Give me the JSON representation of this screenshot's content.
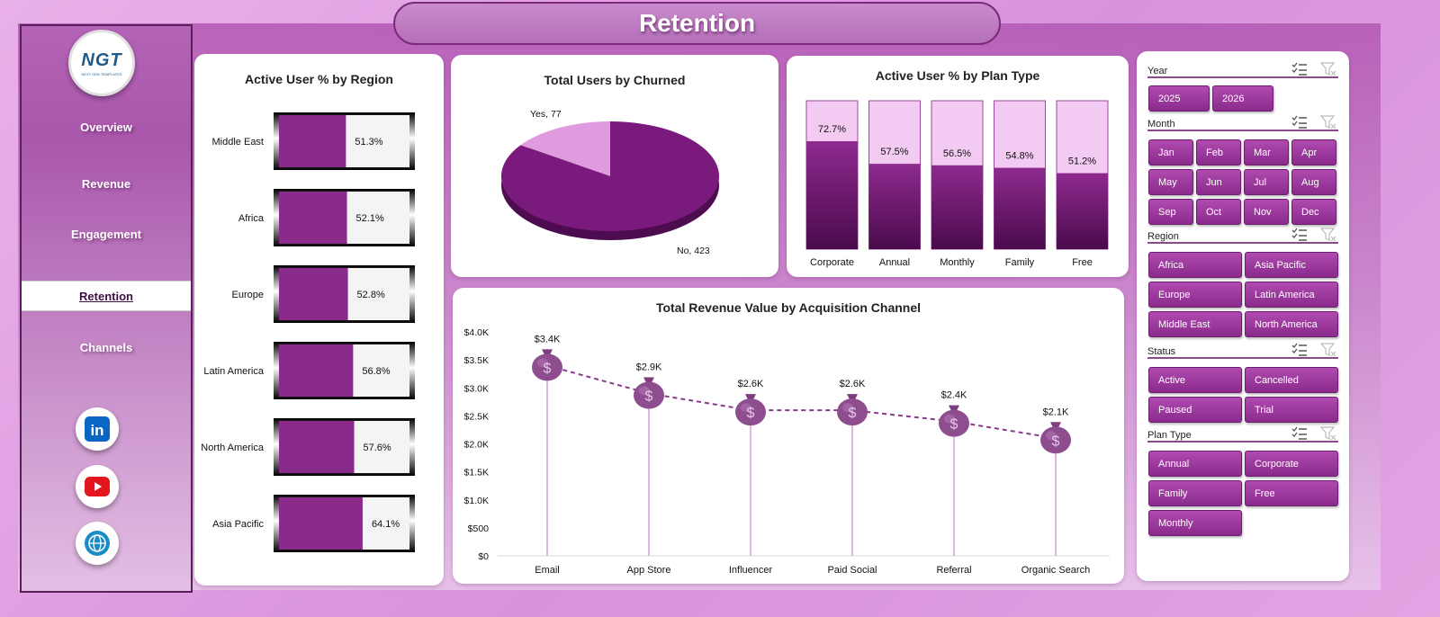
{
  "page_title": "Retention",
  "logo": {
    "text": "NGT",
    "subtext": "NEXT GEN TEMPLATES"
  },
  "nav": {
    "items": [
      {
        "label": "Overview",
        "active": false
      },
      {
        "label": "Revenue",
        "active": false
      },
      {
        "label": "Engagement",
        "active": false
      },
      {
        "label": "Retention",
        "active": true
      },
      {
        "label": "Channels",
        "active": false
      }
    ]
  },
  "social": [
    {
      "icon": "linkedin-icon",
      "label": "in"
    },
    {
      "icon": "youtube-icon",
      "label": ""
    },
    {
      "icon": "globe-icon",
      "label": ""
    }
  ],
  "colors": {
    "accent": "#8a2b8c",
    "dark": "#5e0f60",
    "light": "#f2caf2",
    "line": "#8a3a8c"
  },
  "chart_data": [
    {
      "id": "region",
      "type": "bar",
      "orientation": "horizontal",
      "title": "Active User % by Region",
      "categories": [
        "Middle East",
        "Africa",
        "Europe",
        "Latin America",
        "North America",
        "Asia Pacific"
      ],
      "values": [
        51.3,
        52.1,
        52.8,
        56.8,
        57.6,
        64.1
      ],
      "value_labels": [
        "51.3%",
        "52.1%",
        "52.8%",
        "56.8%",
        "57.6%",
        "64.1%"
      ],
      "xlim": [
        0,
        100
      ],
      "grid": false
    },
    {
      "id": "churn",
      "type": "pie",
      "title": "Total Users by Churned",
      "slices": [
        {
          "label": "Yes",
          "value": 77,
          "text": "Yes, 77"
        },
        {
          "label": "No",
          "value": 423,
          "text": "No, 423"
        }
      ]
    },
    {
      "id": "plan",
      "type": "bar",
      "orientation": "vertical",
      "title": "Active User % by Plan Type",
      "categories": [
        "Corporate",
        "Annual",
        "Monthly",
        "Family",
        "Free"
      ],
      "values": [
        72.7,
        57.5,
        56.5,
        54.8,
        51.2
      ],
      "value_labels": [
        "72.7%",
        "57.5%",
        "56.5%",
        "54.8%",
        "51.2%"
      ],
      "ylim": [
        0,
        100
      ],
      "grid": false
    },
    {
      "id": "channel",
      "type": "line",
      "title": "Total Revenue Value by Acquisition Channel",
      "categories": [
        "Email",
        "App Store",
        "Influencer",
        "Paid Social",
        "Referral",
        "Organic Search"
      ],
      "values": [
        3400,
        2900,
        2600,
        2600,
        2400,
        2100
      ],
      "value_labels": [
        "$3.4K",
        "$2.9K",
        "$2.6K",
        "$2.6K",
        "$2.4K",
        "$2.1K"
      ],
      "y_ticks": [
        "$0",
        "$500",
        "$1.0K",
        "$1.5K",
        "$2.0K",
        "$2.5K",
        "$3.0K",
        "$3.5K",
        "$4.0K"
      ],
      "ylim": [
        0,
        4000
      ],
      "marker_icon": "money-bag-icon",
      "grid": false
    }
  ],
  "slicers": {
    "year": {
      "title": "Year",
      "options": [
        "2025",
        "2026"
      ]
    },
    "month": {
      "title": "Month",
      "options": [
        "Jan",
        "Feb",
        "Mar",
        "Apr",
        "May",
        "Jun",
        "Jul",
        "Aug",
        "Sep",
        "Oct",
        "Nov",
        "Dec"
      ]
    },
    "region": {
      "title": "Region",
      "options": [
        "Africa",
        "Asia Pacific",
        "Europe",
        "Latin America",
        "Middle East",
        "North America"
      ]
    },
    "status": {
      "title": "Status",
      "options": [
        "Active",
        "Cancelled",
        "Paused",
        "Trial"
      ]
    },
    "plan": {
      "title": "Plan Type",
      "options": [
        "Annual",
        "Corporate",
        "Family",
        "Free",
        "Monthly"
      ]
    }
  }
}
